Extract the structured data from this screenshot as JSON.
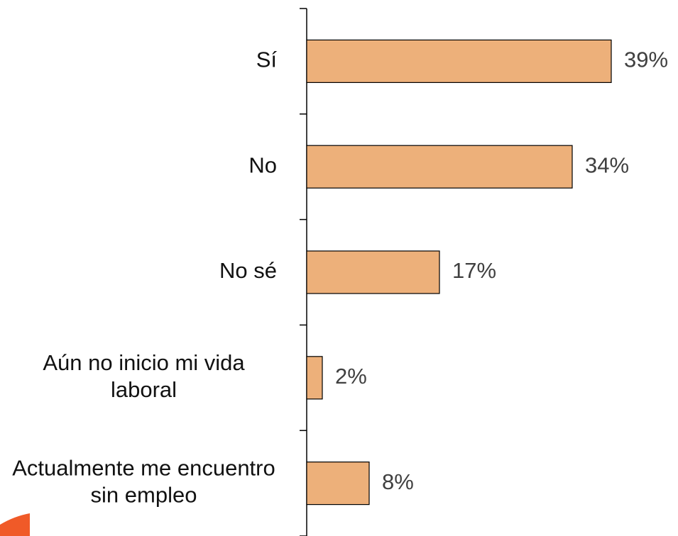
{
  "chart_data": {
    "type": "bar",
    "orientation": "horizontal",
    "categories": [
      "Sí",
      "No",
      "No sé",
      "Aún no inicio mi vida laboral",
      "Actualmente me encuentro sin empleo"
    ],
    "values": [
      39,
      34,
      17,
      2,
      8
    ],
    "value_labels": [
      "39%",
      "34%",
      "17%",
      "2%",
      "8%"
    ],
    "color": "#EDB07A"
  }
}
